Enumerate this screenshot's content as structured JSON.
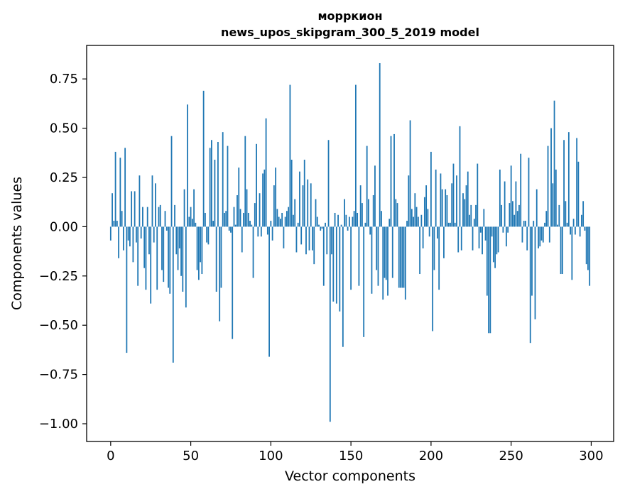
{
  "chart_data": {
    "type": "bar",
    "title_line1": "морркион",
    "title_line2": "news_upos_skipgram_300_5_2019 model",
    "xlabel": "Vector components",
    "ylabel": "Components values",
    "xlim": [
      -15,
      314
    ],
    "ylim": [
      -1.09,
      0.92
    ],
    "xticks": [
      0,
      50,
      100,
      150,
      200,
      250,
      300
    ],
    "xtick_labels": [
      "0",
      "50",
      "100",
      "150",
      "200",
      "250",
      "300"
    ],
    "yticks": [
      -1.0,
      -0.75,
      -0.5,
      -0.25,
      0.0,
      0.25,
      0.5,
      0.75
    ],
    "ytick_labels": [
      "−1.00",
      "−0.75",
      "−0.50",
      "−0.25",
      "0.00",
      "0.25",
      "0.50",
      "0.75"
    ],
    "bar_color": "#1f77b4",
    "x": [
      0,
      1,
      2,
      3,
      4,
      5,
      6,
      7,
      8,
      9,
      10,
      11,
      12,
      13,
      14,
      15,
      16,
      17,
      18,
      19,
      20,
      21,
      22,
      23,
      24,
      25,
      26,
      27,
      28,
      29,
      30,
      31,
      32,
      33,
      34,
      35,
      36,
      37,
      38,
      39,
      40,
      41,
      42,
      43,
      44,
      45,
      46,
      47,
      48,
      49,
      50,
      51,
      52,
      53,
      54,
      55,
      56,
      57,
      58,
      59,
      60,
      61,
      62,
      63,
      64,
      65,
      66,
      67,
      68,
      69,
      70,
      71,
      72,
      73,
      74,
      75,
      76,
      77,
      78,
      79,
      80,
      81,
      82,
      83,
      84,
      85,
      86,
      87,
      88,
      89,
      90,
      91,
      92,
      93,
      94,
      95,
      96,
      97,
      98,
      99,
      100,
      101,
      102,
      103,
      104,
      105,
      106,
      107,
      108,
      109,
      110,
      111,
      112,
      113,
      114,
      115,
      116,
      117,
      118,
      119,
      120,
      121,
      122,
      123,
      124,
      125,
      126,
      127,
      128,
      129,
      130,
      131,
      132,
      133,
      134,
      135,
      136,
      137,
      138,
      139,
      140,
      141,
      142,
      143,
      144,
      145,
      146,
      147,
      148,
      149,
      150,
      151,
      152,
      153,
      154,
      155,
      156,
      157,
      158,
      159,
      160,
      161,
      162,
      163,
      164,
      165,
      166,
      167,
      168,
      169,
      170,
      171,
      172,
      173,
      174,
      175,
      176,
      177,
      178,
      179,
      180,
      181,
      182,
      183,
      184,
      185,
      186,
      187,
      188,
      189,
      190,
      191,
      192,
      193,
      194,
      195,
      196,
      197,
      198,
      199,
      200,
      201,
      202,
      203,
      204,
      205,
      206,
      207,
      208,
      209,
      210,
      211,
      212,
      213,
      214,
      215,
      216,
      217,
      218,
      219,
      220,
      221,
      222,
      223,
      224,
      225,
      226,
      227,
      228,
      229,
      230,
      231,
      232,
      233,
      234,
      235,
      236,
      237,
      238,
      239,
      240,
      241,
      242,
      243,
      244,
      245,
      246,
      247,
      248,
      249,
      250,
      251,
      252,
      253,
      254,
      255,
      256,
      257,
      258,
      259,
      260,
      261,
      262,
      263,
      264,
      265,
      266,
      267,
      268,
      269,
      270,
      271,
      272,
      273,
      274,
      275,
      276,
      277,
      278,
      279,
      280,
      281,
      282,
      283,
      284,
      285,
      286,
      287,
      288,
      289,
      290,
      291,
      292,
      293,
      294,
      295,
      296,
      297,
      298,
      299
    ],
    "values": [
      -0.07,
      0.17,
      0.03,
      0.38,
      0.03,
      -0.16,
      0.35,
      0.08,
      -0.12,
      0.4,
      -0.64,
      -0.07,
      -0.1,
      0.18,
      -0.18,
      0.18,
      -0.08,
      -0.3,
      0.26,
      -0.06,
      0.1,
      -0.21,
      -0.32,
      0.1,
      -0.14,
      -0.39,
      0.26,
      -0.08,
      0.22,
      -0.32,
      0.1,
      0.11,
      -0.22,
      -0.28,
      0.08,
      -0.02,
      -0.31,
      -0.34,
      0.46,
      -0.69,
      0.11,
      -0.14,
      -0.22,
      -0.11,
      -0.25,
      -0.33,
      0.19,
      -0.41,
      0.62,
      0.05,
      0.1,
      0.04,
      0.19,
      0.02,
      -0.22,
      -0.27,
      -0.18,
      -0.24,
      0.69,
      0.07,
      -0.08,
      -0.09,
      0.4,
      0.44,
      0.03,
      0.34,
      -0.33,
      0.43,
      -0.48,
      -0.31,
      0.48,
      0.07,
      0.08,
      0.41,
      -0.02,
      -0.03,
      -0.57,
      0.1,
      0.01,
      0.16,
      0.3,
      0.09,
      -0.13,
      0.07,
      0.46,
      0.19,
      0.07,
      0.03,
      0.01,
      -0.26,
      0.12,
      0.42,
      -0.05,
      0.17,
      -0.05,
      0.27,
      0.29,
      0.55,
      -0.04,
      -0.66,
      0.03,
      -0.07,
      0.21,
      0.3,
      0.09,
      0.05,
      0.04,
      0.07,
      -0.11,
      0.05,
      0.08,
      0.1,
      0.72,
      0.34,
      0.06,
      0.14,
      -0.13,
      0.02,
      0.28,
      -0.09,
      0.21,
      0.34,
      -0.14,
      0.24,
      -0.12,
      0.22,
      -0.12,
      -0.19,
      0.14,
      0.05,
      0.01,
      -0.02,
      -0.01,
      -0.3,
      0.02,
      -0.14,
      0.44,
      -0.99,
      -0.14,
      -0.38,
      0.07,
      -0.39,
      0.06,
      -0.43,
      0.01,
      -0.61,
      0.14,
      0.06,
      -0.02,
      0.05,
      -0.32,
      0.05,
      0.08,
      0.72,
      0.07,
      -0.3,
      0.21,
      0.12,
      -0.56,
      0.02,
      0.41,
      0.14,
      -0.04,
      -0.34,
      0.16,
      0.31,
      -0.22,
      -0.3,
      0.83,
      0.08,
      -0.37,
      -0.26,
      -0.27,
      -0.35,
      0.04,
      0.46,
      -0.26,
      0.47,
      0.14,
      0.12,
      -0.31,
      -0.31,
      -0.31,
      -0.31,
      -0.37,
      0.03,
      0.26,
      0.54,
      0.09,
      0.05,
      0.17,
      0.1,
      0.05,
      -0.24,
      0.06,
      -0.11,
      0.15,
      0.21,
      0.09,
      -0.05,
      0.38,
      -0.53,
      -0.22,
      0.29,
      -0.06,
      -0.32,
      0.27,
      0.19,
      -0.16,
      0.19,
      0.16,
      0.02,
      0.02,
      0.22,
      0.32,
      0.02,
      0.26,
      -0.13,
      0.51,
      -0.12,
      0.17,
      0.14,
      0.21,
      0.28,
      0.06,
      0.11,
      -0.12,
      0.04,
      0.11,
      0.32,
      -0.11,
      -0.03,
      -0.14,
      0.09,
      -0.07,
      -0.35,
      -0.54,
      -0.54,
      -0.05,
      -0.18,
      -0.21,
      -0.14,
      -0.13,
      0.29,
      0.11,
      -0.03,
      0.23,
      -0.1,
      -0.03,
      0.12,
      0.31,
      0.13,
      0.06,
      0.23,
      0.08,
      0.11,
      0.37,
      -0.08,
      0.03,
      0.03,
      -0.12,
      0.35,
      -0.59,
      -0.35,
      0.03,
      -0.47,
      0.19,
      -0.11,
      -0.1,
      -0.07,
      -0.08,
      0.02,
      0.08,
      0.41,
      -0.08,
      0.5,
      0.22,
      0.64,
      0.29,
      0.01,
      0.11,
      -0.24,
      -0.24,
      0.44,
      0.13,
      0.02,
      0.48,
      -0.04,
      -0.27,
      0.04,
      -0.04,
      0.45,
      0.33,
      -0.05,
      0.06,
      0.13,
      -0.02,
      -0.19,
      -0.22,
      -0.3
    ]
  }
}
